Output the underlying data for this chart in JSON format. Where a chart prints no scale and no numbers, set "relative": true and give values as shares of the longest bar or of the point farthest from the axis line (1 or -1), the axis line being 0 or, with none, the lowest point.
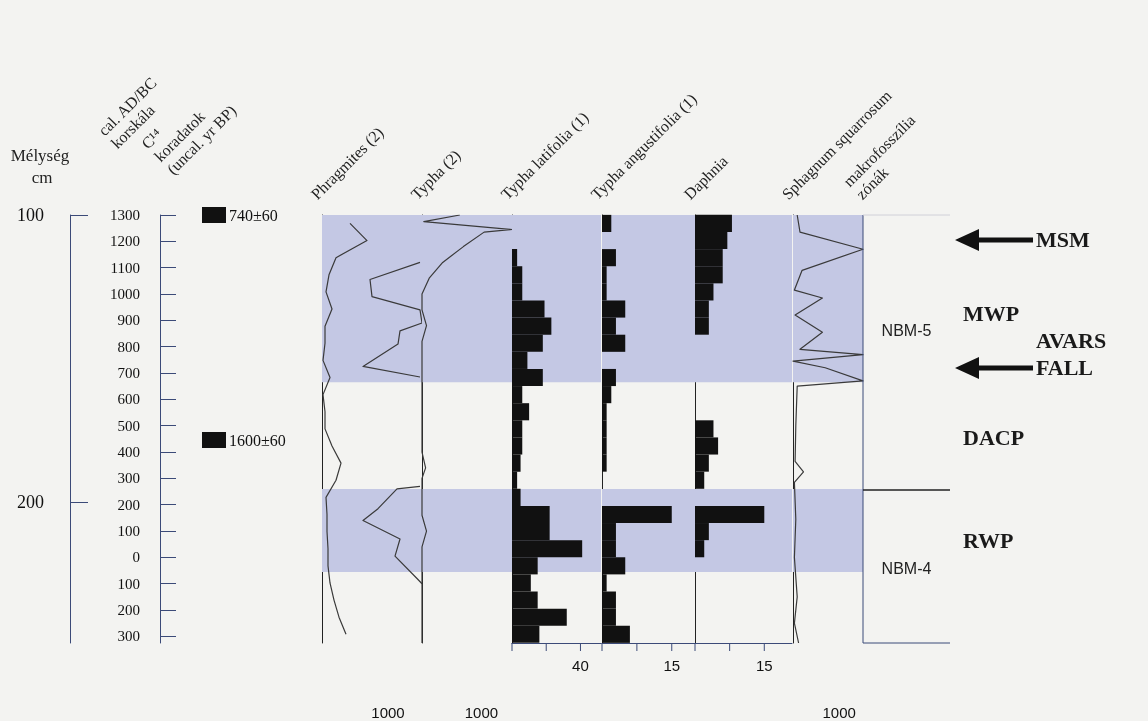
{
  "chart_data": [
    {
      "type": "line",
      "title": "Phragmites (2)",
      "ylabel": "cal. AD/BC korskála",
      "y2label": "Mélység cm",
      "orientation": "horizontal",
      "marker": "none",
      "relative": true,
      "annotations": [
        "C¹⁴ koradatok (uncal. yr BP)",
        "740±60",
        "1600±60",
        "1000"
      ],
      "ylim": [
        -325,
        1300
      ],
      "yticks": [
        {
          "value": -300,
          "label": "300"
        },
        {
          "value": -200,
          "label": "200"
        },
        {
          "value": -100,
          "label": "100"
        },
        0,
        100,
        200,
        300,
        400,
        500,
        600,
        700,
        800,
        900,
        1000,
        1100,
        1200,
        1300
      ],
      "y2lim": [
        249,
        100
      ],
      "y2ticks": [
        100,
        200
      ],
      "bands": [
        {
          "axis": "y",
          "from": 665,
          "to": 1300,
          "color": "#c4c8e4"
        },
        {
          "axis": "y",
          "from": -55,
          "to": 260,
          "color": "#c4c8e4"
        }
      ],
      "series": [
        {
          "color": "#3a3a3a",
          "x": [
            1268,
            1203,
            1138,
            1073,
            1008,
            943,
            878,
            813,
            748,
            683,
            618,
            553,
            488,
            423,
            358,
            293,
            228,
            163,
            98,
            33,
            -32,
            -97,
            -162,
            -227,
            -292
          ],
          "values": [
            0.28,
            0.45,
            0.14,
            0.07,
            0.04,
            0.1,
            0.03,
            0.03,
            0.01,
            0.08,
            0.01,
            0.03,
            0.03,
            0.1,
            0.19,
            0.14,
            0.04,
            0.05,
            0.05,
            0.06,
            0.06,
            0.08,
            0.12,
            0.17,
            0.24
          ]
        },
        {
          "color": "#3a3a3a",
          "x": [
            1120,
            1055,
            990,
            940,
            890,
            860,
            810,
            725,
            685,
            480,
            270,
            260,
            185,
            140,
            70,
            5,
            -80,
            -100
          ],
          "values": [
            0.98,
            0.48,
            0.5,
            0.98,
            1,
            0.78,
            0.76,
            0.41,
            0.98,
            null,
            0.98,
            0.75,
            0.56,
            0.41,
            0.78,
            0.73,
            0.95,
            1
          ]
        }
      ]
    },
    {
      "type": "line",
      "title": "Typha (2)",
      "orientation": "horizontal",
      "marker": "none",
      "tick_labels": "x",
      "relative": true,
      "annotations": [
        "1000"
      ],
      "ylim": [
        -325,
        1300
      ],
      "bands": [
        {
          "axis": "y",
          "from": 665,
          "to": 1300,
          "color": "#c4c8e4"
        },
        {
          "axis": "y",
          "from": -55,
          "to": 260,
          "color": "#c4c8e4"
        }
      ],
      "series": [
        {
          "color": "#3a3a3a",
          "x": [
            1300,
            1275,
            1245,
            1235,
            1180,
            1120,
            1060,
            1000,
            940,
            880,
            820,
            700,
            400,
            340,
            300,
            160,
            100,
            40,
            -100,
            -325
          ],
          "values": [
            0.42,
            0.02,
            1,
            0.69,
            0.46,
            0.23,
            0.08,
            0,
            0,
            0.05,
            0,
            0,
            0,
            0.04,
            0,
            0,
            0.05,
            0,
            0,
            0
          ]
        }
      ]
    },
    {
      "type": "bar",
      "title": "Typha latifolia (1)",
      "orientation": "horizontal",
      "tick_labels": "x",
      "xlim": [
        0,
        52
      ],
      "xticks": [
        {
          "value": 0,
          "label": null
        },
        {
          "value": 20,
          "label": null
        },
        {
          "value": 40,
          "label": "40"
        }
      ],
      "ylim": [
        -325,
        1300
      ],
      "bands": [
        {
          "axis": "y",
          "from": 665,
          "to": 1300,
          "color": "#c4c8e4"
        },
        {
          "axis": "y",
          "from": -55,
          "to": 260,
          "color": "#c4c8e4"
        }
      ],
      "series": [
        {
          "color": "#111111",
          "x": [
            1268,
            1203,
            1138,
            1073,
            1008,
            943,
            878,
            813,
            748,
            683,
            618,
            553,
            488,
            423,
            358,
            293,
            228,
            163,
            98,
            33,
            -32,
            -97,
            -162,
            -227,
            -292
          ],
          "values": [
            0,
            0,
            3,
            6,
            6,
            19,
            23,
            18,
            9,
            18,
            6,
            10,
            6,
            6,
            5,
            3,
            5,
            22,
            22,
            41,
            15,
            11,
            15,
            32,
            16
          ]
        }
      ]
    },
    {
      "type": "bar",
      "title": "Typha angustifolia (1)",
      "orientation": "horizontal",
      "tick_labels": "x",
      "xlim": [
        0,
        20
      ],
      "xticks": [
        {
          "value": 0,
          "label": null
        },
        {
          "value": 7.5,
          "label": null
        },
        {
          "value": 15,
          "label": "15"
        }
      ],
      "ylim": [
        -325,
        1300
      ],
      "bands": [
        {
          "axis": "y",
          "from": 665,
          "to": 1300,
          "color": "#c4c8e4"
        },
        {
          "axis": "y",
          "from": -55,
          "to": 260,
          "color": "#c4c8e4"
        }
      ],
      "series": [
        {
          "color": "#111111",
          "x": [
            1268,
            1203,
            1138,
            1073,
            1008,
            943,
            878,
            813,
            748,
            683,
            618,
            553,
            488,
            423,
            358,
            293,
            228,
            163,
            98,
            33,
            -32,
            -97,
            -162,
            -227,
            -292
          ],
          "values": [
            2,
            0,
            3,
            1,
            1,
            5,
            3,
            5,
            0,
            3,
            2,
            1,
            1,
            1,
            1,
            0,
            0,
            15,
            3,
            3,
            5,
            1,
            3,
            3,
            6
          ]
        }
      ]
    },
    {
      "type": "bar",
      "title": "Daphnia",
      "orientation": "horizontal",
      "tick_labels": "x",
      "xlim": [
        0,
        21
      ],
      "xticks": [
        {
          "value": 0,
          "label": null
        },
        {
          "value": 7.5,
          "label": null
        },
        {
          "value": 15,
          "label": "15"
        }
      ],
      "ylim": [
        -325,
        1300
      ],
      "bands": [
        {
          "axis": "y",
          "from": 665,
          "to": 1300,
          "color": "#c4c8e4"
        },
        {
          "axis": "y",
          "from": -55,
          "to": 260,
          "color": "#c4c8e4"
        }
      ],
      "series": [
        {
          "color": "#111111",
          "x": [
            1268,
            1203,
            1138,
            1073,
            1008,
            943,
            878,
            813,
            748,
            683,
            618,
            553,
            488,
            423,
            358,
            293,
            228,
            163,
            98,
            33,
            -32,
            -97,
            -162,
            -227,
            -292
          ],
          "values": [
            8,
            7,
            6,
            6,
            4,
            3,
            3,
            0,
            0,
            0,
            0,
            0,
            4,
            5,
            3,
            2,
            0,
            15,
            3,
            2,
            0,
            0,
            0,
            0,
            0
          ]
        }
      ]
    },
    {
      "type": "line",
      "title": "Sphagnum squarrosum",
      "orientation": "horizontal",
      "marker": "none",
      "tick_labels": "x",
      "relative": true,
      "annotations": [
        "1000"
      ],
      "ylim": [
        -325,
        1300
      ],
      "bands": [
        {
          "axis": "y",
          "from": 665,
          "to": 1300,
          "color": "#c4c8e4"
        },
        {
          "axis": "y",
          "from": -55,
          "to": 260,
          "color": "#c4c8e4"
        }
      ],
      "series": [
        {
          "color": "#3a3a3a",
          "x": [
            1300,
            1235,
            1170,
            1090,
            1015,
            985,
            920,
            855,
            790,
            770,
            745,
            720,
            670,
            650,
            500,
            365,
            325,
            285,
            145,
            0,
            -150,
            -250,
            -325
          ],
          "values": [
            0.06,
            0.1,
            1,
            0.13,
            0.02,
            0.42,
            0.03,
            0.42,
            0.1,
            1,
            0,
            0.46,
            1,
            0.06,
            0.04,
            0.03,
            0.15,
            0.02,
            0.04,
            0.02,
            0.06,
            0.02,
            0.08
          ]
        }
      ]
    },
    {
      "type": "other",
      "title": "makrofosszília zónák",
      "annotations": [
        "NBM-5",
        "NBM-4"
      ]
    },
    {
      "type": "other",
      "annotations": [
        "MSM",
        "MWP",
        "AVARS FALL",
        "DACP",
        "RWP"
      ]
    }
  ]
}
